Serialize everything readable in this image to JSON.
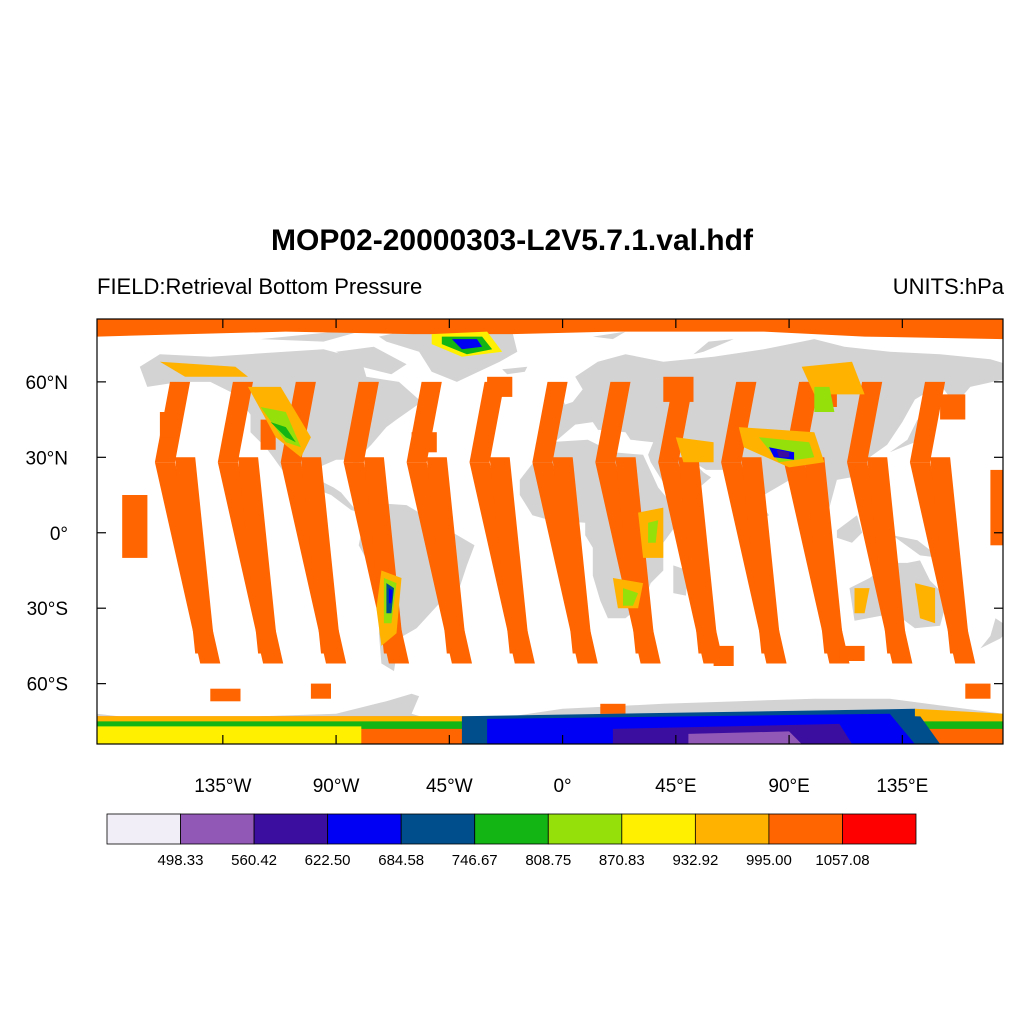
{
  "title": "MOP02-20000303-L2V5.7.1.val.hdf",
  "field_label": "FIELD:Retrieval Bottom Pressure",
  "units_label": "UNITS:hPa",
  "map": {
    "projection": "cylindrical-equidistant",
    "lon_range": [
      -180,
      180
    ],
    "lat_range": [
      -90,
      90
    ],
    "land_color": "#d3d3d3",
    "ocean_color": "#ffffff",
    "lat_ticks": [
      {
        "lat": 60,
        "label": "60°N"
      },
      {
        "lat": 30,
        "label": "30°N"
      },
      {
        "lat": 0,
        "label": "0°"
      },
      {
        "lat": -30,
        "label": "30°S"
      },
      {
        "lat": -60,
        "label": "60°S"
      }
    ],
    "lon_ticks": [
      {
        "lon": -135,
        "label": "135°W"
      },
      {
        "lon": -90,
        "label": "90°W"
      },
      {
        "lon": -45,
        "label": "45°W"
      },
      {
        "lon": 0,
        "label": "0°"
      },
      {
        "lon": 45,
        "label": "45°E"
      },
      {
        "lon": 90,
        "label": "90°E"
      },
      {
        "lon": 135,
        "label": "135°E"
      }
    ]
  },
  "colorbar": {
    "colors": [
      "#f2eef7",
      "#9158b6",
      "#3b0ea0",
      "#0000f5",
      "#004f8c",
      "#13b514",
      "#95e00b",
      "#fff000",
      "#ffb200",
      "#ff6500",
      "#ff0000"
    ],
    "labels": [
      "498.33",
      "560.42",
      "622.50",
      "684.58",
      "746.67",
      "808.75",
      "870.83",
      "932.92",
      "995.00",
      "1057.08"
    ]
  }
}
